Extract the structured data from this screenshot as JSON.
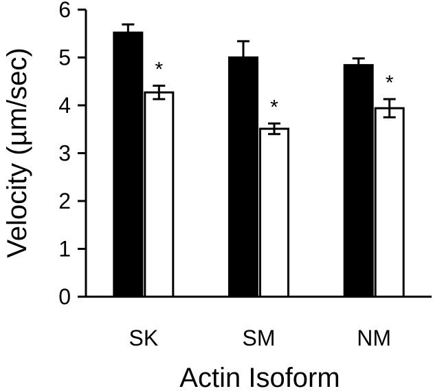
{
  "chart_data": {
    "type": "bar",
    "categories": [
      "SK",
      "SM",
      "NM"
    ],
    "series": [
      {
        "fill": "#000000",
        "values": [
          5.52,
          5.0,
          4.84
        ],
        "errors": [
          0.17,
          0.34,
          0.14
        ]
      },
      {
        "fill": "#ffffff",
        "values": [
          4.27,
          3.51,
          3.94
        ],
        "errors": [
          0.14,
          0.11,
          0.19
        ]
      }
    ],
    "significance": [
      "*",
      "*",
      "*"
    ],
    "ylabel": "Velocity (µm/sec)",
    "xlabel": "Actin Isoform",
    "ylim": [
      0,
      6
    ],
    "yticks": [
      "0",
      "1",
      "2",
      "3",
      "4",
      "5",
      "6"
    ],
    "grid": false
  }
}
